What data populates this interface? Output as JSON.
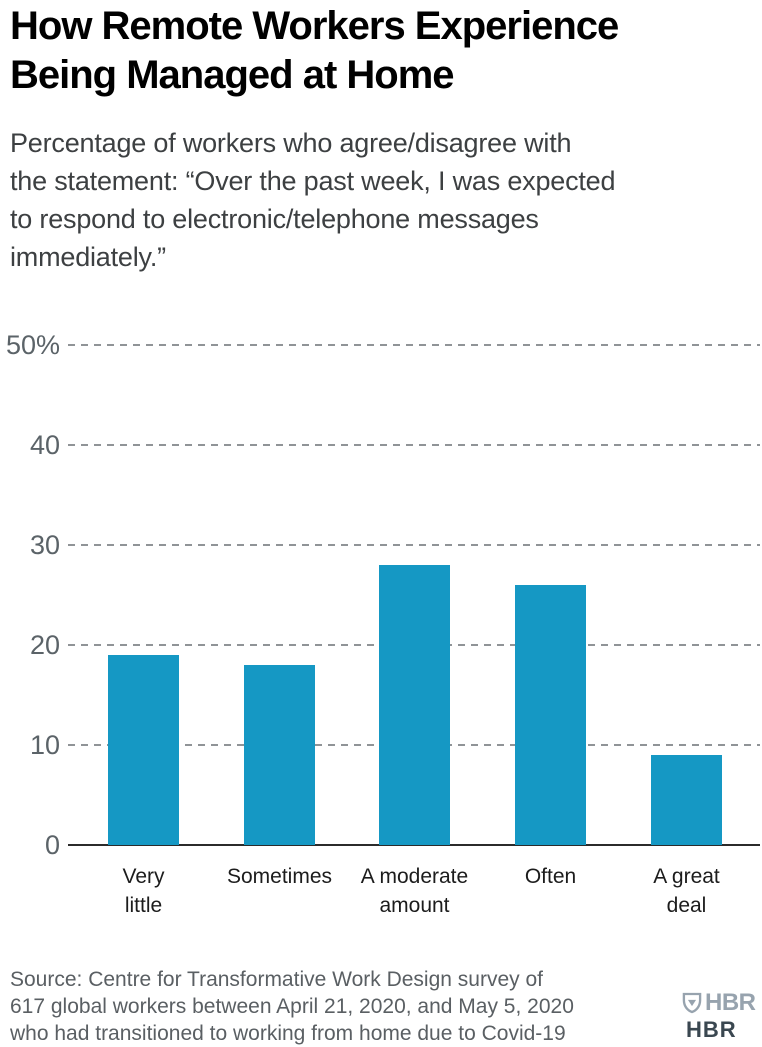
{
  "header": {
    "title": "How Remote Workers Experience\nBeing Managed at Home",
    "subtitle": "Percentage of workers who agree/disagree with\nthe statement: “Over the past week, I was expected\nto respond to electronic/telephone messages\nimmediately.”"
  },
  "chart_data": {
    "type": "bar",
    "title": "How Remote Workers Experience Being Managed at Home",
    "subtitle": "Percentage of workers who agree/disagree with the statement: “Over the past week, I was expected to respond to electronic/telephone messages immediately.”",
    "categories": [
      "Very little",
      "Sometimes",
      "A moderate amount",
      "Often",
      "A great deal"
    ],
    "category_labels_wrapped": [
      "Very\nlittle",
      "Sometimes",
      "A moderate\namount",
      "Often",
      "A great\ndeal"
    ],
    "values": [
      19,
      18,
      28,
      26,
      9
    ],
    "xlabel": "",
    "ylabel": "",
    "ylim": [
      0,
      50
    ],
    "yticks": [
      0,
      10,
      20,
      30,
      40,
      50
    ],
    "ytick_labels": [
      "0",
      "10",
      "20",
      "30",
      "40",
      "50%"
    ],
    "grid": "horizontal-dashed",
    "legend": "none",
    "bar_color": "#1598c4",
    "grid_color": "#909497",
    "baseline_color": "#2b2b2b"
  },
  "footer": {
    "source": "Source: Centre for Transformative Work Design survey of\n617 global workers between April 21, 2020, and May 5, 2020\nwho had transitioned to working from home due to Covid-19",
    "logo_text": "HBR",
    "clipped_mark": "HBR"
  },
  "layout_colors": {
    "accent_blue": "#1598c4",
    "logo_gray": "#97a3ae",
    "text_dark": "#1c1c1c",
    "text_gray": "#5a5f63"
  }
}
